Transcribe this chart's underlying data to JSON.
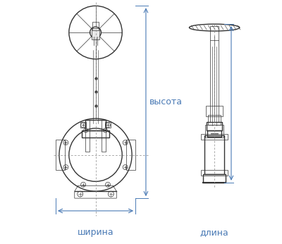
{
  "bg_color": "#ffffff",
  "line_color": "#333333",
  "dim_color": "#4a7ab5",
  "text_color": "#4a7ab5",
  "label_shirina": "ширина",
  "label_dlina": "длина",
  "label_vysota": "высота",
  "font_size_labels": 9,
  "fig_width": 4.0,
  "fig_height": 3.46
}
